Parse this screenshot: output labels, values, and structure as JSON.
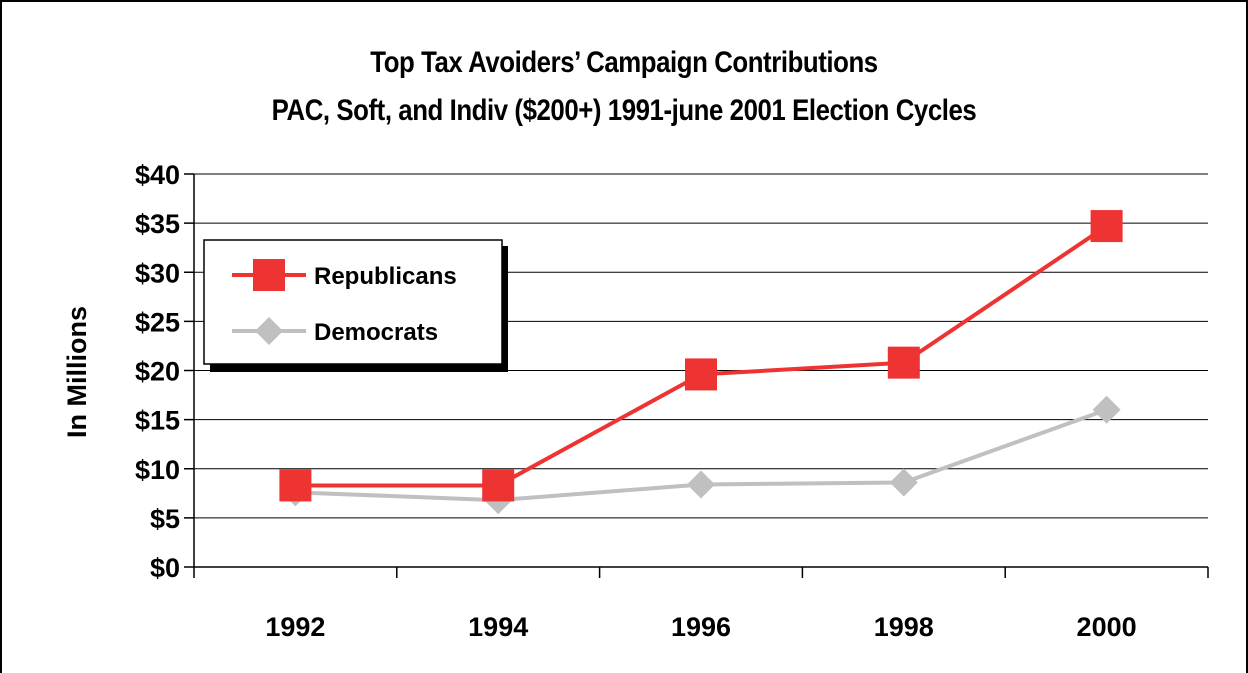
{
  "chart_data": {
    "type": "line",
    "title": "Top Tax Avoiders’ Campaign Contributions",
    "subtitle": "PAC, Soft, and Indiv ($200+) 1991-june 2001 Election Cycles",
    "xlabel": "",
    "ylabel": "In Millions",
    "categories": [
      "1992",
      "1994",
      "1996",
      "1998",
      "2000"
    ],
    "y_ticks": [
      "$0",
      "$5",
      "$10",
      "$15",
      "$20",
      "$25",
      "$30",
      "$35",
      "$40"
    ],
    "ylim": [
      0,
      40
    ],
    "grid": true,
    "legend_position": "top-left",
    "series": [
      {
        "name": "Republicans",
        "values": [
          8.3,
          8.3,
          19.6,
          20.8,
          34.7
        ],
        "color": "#ee3333",
        "marker": "square"
      },
      {
        "name": "Democrats",
        "values": [
          7.6,
          6.8,
          8.4,
          8.6,
          16.0
        ],
        "color": "#c0c0c0",
        "marker": "diamond"
      }
    ]
  }
}
